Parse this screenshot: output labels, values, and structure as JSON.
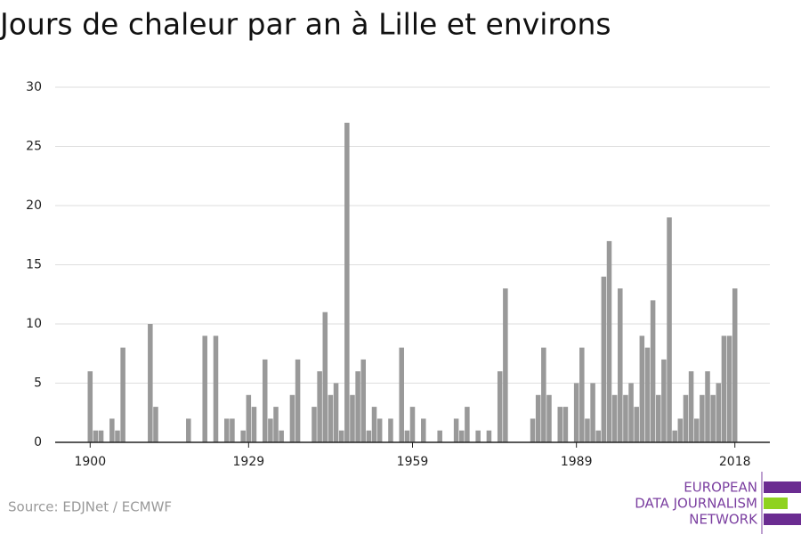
{
  "chart_data": {
    "type": "bar",
    "title": "Jours de chaleur par an à Lille et environs",
    "x": [
      1900,
      1901,
      1902,
      1903,
      1904,
      1905,
      1906,
      1907,
      1908,
      1909,
      1910,
      1911,
      1912,
      1913,
      1914,
      1915,
      1916,
      1917,
      1918,
      1919,
      1920,
      1921,
      1922,
      1923,
      1924,
      1925,
      1926,
      1927,
      1928,
      1929,
      1930,
      1931,
      1932,
      1933,
      1934,
      1935,
      1936,
      1937,
      1938,
      1939,
      1940,
      1941,
      1942,
      1943,
      1944,
      1945,
      1946,
      1947,
      1948,
      1949,
      1950,
      1951,
      1952,
      1953,
      1954,
      1955,
      1956,
      1957,
      1958,
      1959,
      1960,
      1961,
      1962,
      1963,
      1964,
      1965,
      1966,
      1967,
      1968,
      1969,
      1970,
      1971,
      1972,
      1973,
      1974,
      1975,
      1976,
      1977,
      1978,
      1979,
      1980,
      1981,
      1982,
      1983,
      1984,
      1985,
      1986,
      1987,
      1988,
      1989,
      1990,
      1991,
      1992,
      1993,
      1994,
      1995,
      1996,
      1997,
      1998,
      1999,
      2000,
      2001,
      2002,
      2003,
      2004,
      2005,
      2006,
      2007,
      2008,
      2009,
      2010,
      2011,
      2012,
      2013,
      2014,
      2015,
      2016,
      2017,
      2018
    ],
    "values": [
      6,
      1,
      1,
      0,
      2,
      1,
      8,
      0,
      0,
      0,
      0,
      10,
      3,
      0,
      0,
      0,
      0,
      0,
      2,
      0,
      0,
      9,
      0,
      9,
      0,
      2,
      2,
      0,
      1,
      4,
      3,
      0,
      7,
      2,
      3,
      1,
      0,
      4,
      7,
      0,
      0,
      3,
      6,
      11,
      4,
      5,
      1,
      27,
      4,
      6,
      7,
      1,
      3,
      2,
      0,
      2,
      0,
      8,
      1,
      3,
      0,
      2,
      0,
      0,
      1,
      0,
      0,
      2,
      1,
      3,
      0,
      1,
      0,
      1,
      0,
      6,
      13,
      0,
      0,
      0,
      0,
      2,
      4,
      8,
      4,
      0,
      3,
      3,
      0,
      5,
      8,
      2,
      5,
      1,
      14,
      17,
      4,
      13,
      4,
      5,
      3,
      9,
      8,
      12,
      4,
      7,
      19,
      1,
      2,
      4,
      6,
      2,
      4,
      6,
      4,
      5,
      9,
      9,
      13
    ],
    "color": "#999999",
    "xlim": [
      1893.6,
      2024.4
    ],
    "xticks": [
      1900,
      1929,
      1959,
      1989,
      2018
    ],
    "ylim": [
      0,
      30
    ],
    "yticks": [
      0,
      5,
      10,
      15,
      20,
      25,
      30
    ],
    "grid": true
  },
  "source": "Source: EDJNet / ECMWF",
  "logo": {
    "lines": [
      "EUROPEAN",
      "DATA JOURNALISM",
      "NETWORK"
    ]
  }
}
